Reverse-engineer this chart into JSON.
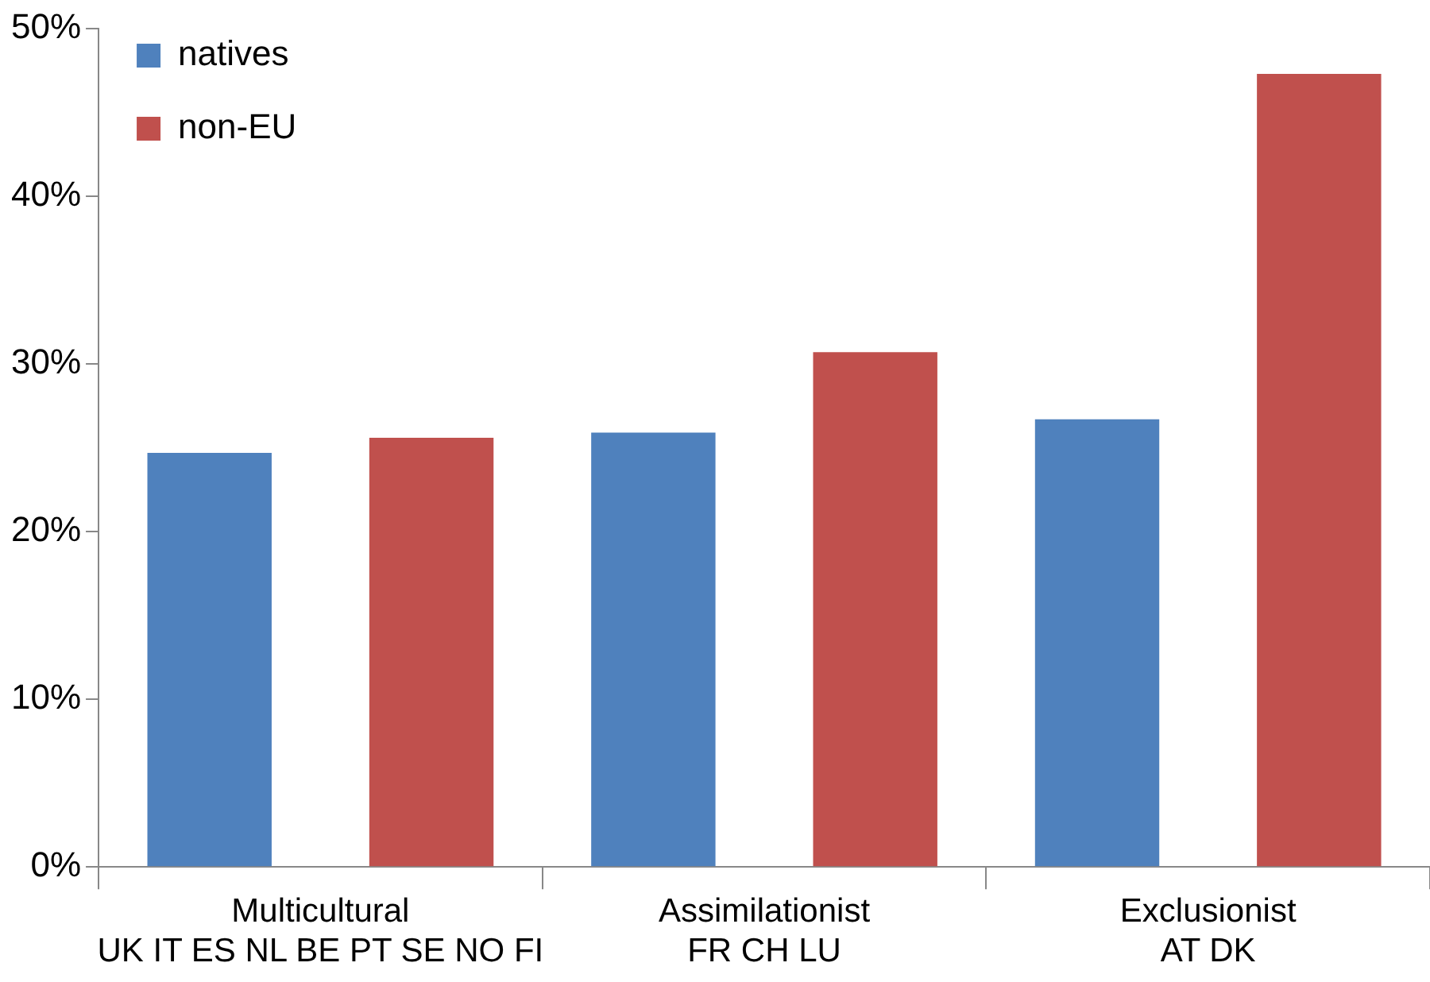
{
  "chart_data": {
    "type": "bar",
    "categories": [
      "Multicultural\nUK IT ES NL BE PT SE NO FI",
      "Assimilationist\nFR CH LU",
      "Exclusionist\nAT DK"
    ],
    "series": [
      {
        "name": "natives",
        "color": "#4f81bd",
        "values": [
          24.7,
          25.9,
          26.7
        ]
      },
      {
        "name": "non-EU",
        "color": "#c0504d",
        "values": [
          25.6,
          30.7,
          47.3
        ]
      }
    ],
    "ylim": [
      0,
      50
    ],
    "yticks": [
      {
        "value": 0,
        "label": "0%"
      },
      {
        "value": 10,
        "label": "10%"
      },
      {
        "value": 20,
        "label": "20%"
      },
      {
        "value": 30,
        "label": "30%"
      },
      {
        "value": 40,
        "label": "40%"
      },
      {
        "value": 50,
        "label": "50%"
      }
    ],
    "grid": false,
    "legend": "top left"
  }
}
